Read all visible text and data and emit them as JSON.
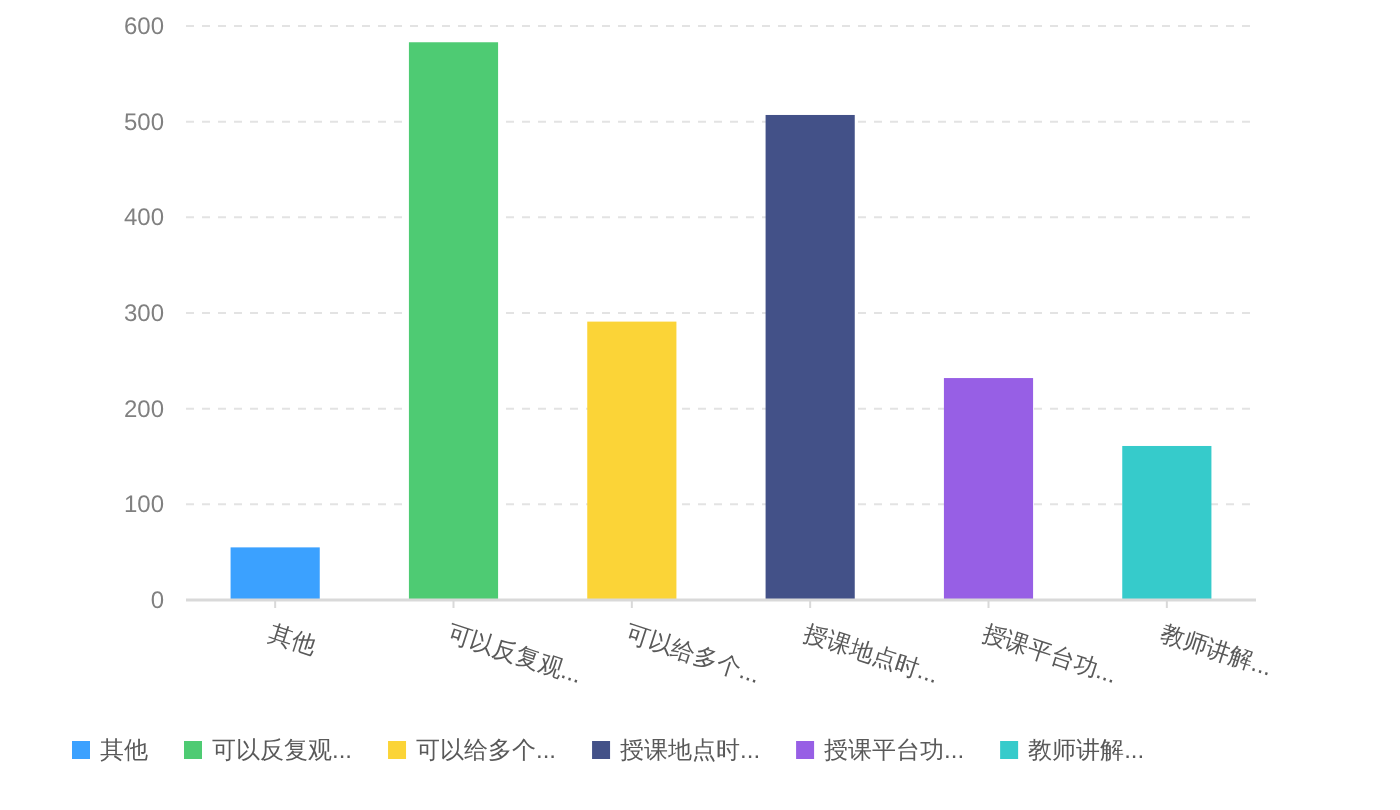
{
  "chart_data": {
    "type": "bar",
    "stacked": true,
    "categories": [
      "其他",
      "可以反复观...",
      "可以给多个...",
      "授课地点时...",
      "授课平台功...",
      "教师讲解..."
    ],
    "series": [
      {
        "name": "其他",
        "color": "#3ba1ff",
        "values": [
          55,
          null,
          null,
          null,
          null,
          null
        ]
      },
      {
        "name": "可以反复观...",
        "color": "#4ecb73",
        "values": [
          null,
          583,
          null,
          null,
          null,
          null
        ]
      },
      {
        "name": "可以给多个...",
        "color": "#fbd437",
        "values": [
          null,
          null,
          291,
          null,
          null,
          null
        ]
      },
      {
        "name": "授课地点时...",
        "color": "#435188",
        "values": [
          null,
          null,
          null,
          507,
          null,
          null
        ]
      },
      {
        "name": "授课平台功...",
        "color": "#975fe5",
        "values": [
          null,
          null,
          null,
          null,
          232,
          null
        ]
      },
      {
        "name": "教师讲解...",
        "color": "#36cbcb",
        "values": [
          null,
          null,
          null,
          null,
          null,
          161
        ]
      }
    ],
    "ylim": [
      0,
      600
    ],
    "yticks": [
      0,
      100,
      200,
      300,
      400,
      500,
      600
    ],
    "grid": "y",
    "legend": "bottom"
  }
}
